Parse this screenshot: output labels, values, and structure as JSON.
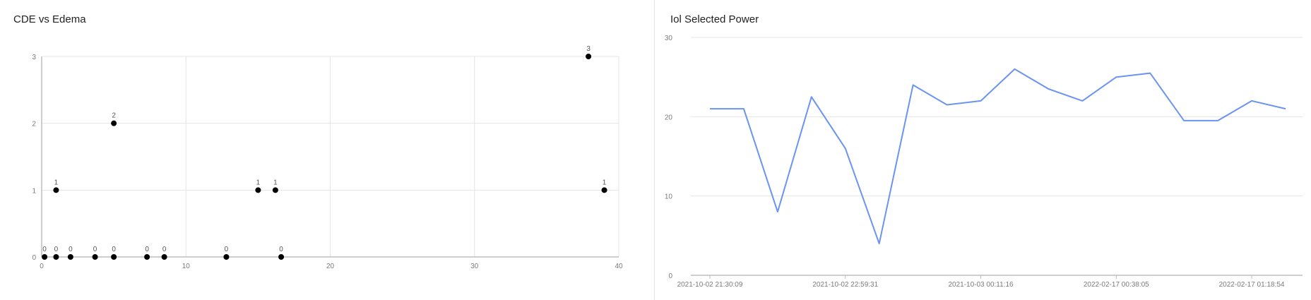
{
  "colors": {
    "grid": "#e4e4e4",
    "axis": "#bdbdbd",
    "point": "#000000",
    "line": "#6b93f2",
    "tick_text": "#7a7a7a"
  },
  "chart_data": [
    {
      "type": "scatter",
      "title": "CDE vs Edema",
      "xlabel": "",
      "ylabel": "",
      "xlim": [
        0,
        40
      ],
      "ylim": [
        0,
        3
      ],
      "x_ticks": [
        0,
        10,
        20,
        30,
        40
      ],
      "y_ticks": [
        0,
        1,
        2,
        3
      ],
      "grid": true,
      "points": [
        {
          "x": 0.2,
          "y": 0,
          "label": "0"
        },
        {
          "x": 1.0,
          "y": 0,
          "label": "0"
        },
        {
          "x": 2.0,
          "y": 0,
          "label": "0"
        },
        {
          "x": 3.7,
          "y": 0,
          "label": "0"
        },
        {
          "x": 5.0,
          "y": 0,
          "label": "0"
        },
        {
          "x": 7.3,
          "y": 0,
          "label": "0"
        },
        {
          "x": 8.5,
          "y": 0,
          "label": "0"
        },
        {
          "x": 12.8,
          "y": 0,
          "label": "0"
        },
        {
          "x": 16.6,
          "y": 0,
          "label": "0"
        },
        {
          "x": 1.0,
          "y": 1,
          "label": "1"
        },
        {
          "x": 15.0,
          "y": 1,
          "label": "1"
        },
        {
          "x": 16.2,
          "y": 1,
          "label": "1"
        },
        {
          "x": 39.0,
          "y": 1,
          "label": "1"
        },
        {
          "x": 5.0,
          "y": 2,
          "label": "2"
        },
        {
          "x": 37.9,
          "y": 3,
          "label": "3"
        }
      ]
    },
    {
      "type": "line",
      "title": "Iol Selected Power",
      "xlabel": "",
      "ylabel": "",
      "ylim": [
        0,
        30
      ],
      "y_ticks": [
        0,
        10,
        20,
        30
      ],
      "grid": true,
      "x_tick_labels": [
        "2021-10-02 21:30:09",
        "2021-10-02 22:59:31",
        "2021-10-03 00:11:16",
        "2022-02-17 00:38:05",
        "2022-02-17 01:18:54"
      ],
      "x_tick_indices": [
        0,
        4,
        8,
        12,
        16
      ],
      "values": [
        21,
        21,
        8,
        22.5,
        16,
        4,
        24,
        21.5,
        22,
        26,
        23.5,
        22,
        25,
        25.5,
        19.5,
        19.5,
        22,
        21
      ]
    }
  ]
}
